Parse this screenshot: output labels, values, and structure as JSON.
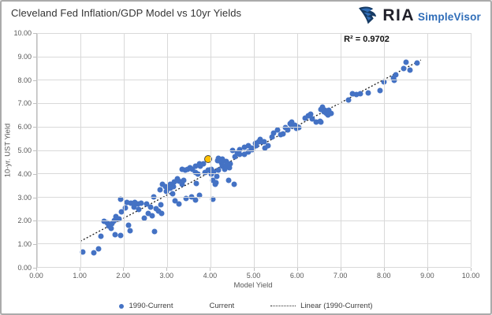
{
  "header": {
    "title": "Cleveland Fed Inflation/GDP Model vs 10yr Yields",
    "logo": {
      "ria_text": "RIA",
      "simplevisor_text": "SimpleVisor",
      "ria_color": "#20202a",
      "simplevisor_color": "#2f6db8",
      "icon_dark_blue": "#163a63",
      "icon_mid_blue": "#2f6db8"
    }
  },
  "chart_data": {
    "type": "scatter",
    "title": "Cleveland Fed Inflation/GDP Model vs 10yr Yields",
    "xlabel": "Model Yield",
    "ylabel": "10-yr. UST Yield",
    "xlim": [
      0,
      10
    ],
    "ylim": [
      0,
      10
    ],
    "grid": true,
    "annotation": "R² = 0.9702",
    "x_ticks": [
      "0.00",
      "1.00",
      "2.00",
      "3.00",
      "4.00",
      "5.00",
      "6.00",
      "7.00",
      "8.00",
      "9.00",
      "10.00"
    ],
    "y_ticks": [
      "0.00",
      "1.00",
      "2.00",
      "3.00",
      "4.00",
      "5.00",
      "6.00",
      "7.00",
      "8.00",
      "9.00",
      "10.00"
    ],
    "legend_position": "bottom",
    "series": [
      {
        "name": "1990-Current",
        "color": "#4472C4",
        "marker": "circle",
        "points": [
          [
            1.05,
            0.65
          ],
          [
            1.31,
            0.6
          ],
          [
            1.42,
            0.78
          ],
          [
            1.48,
            1.3
          ],
          [
            1.55,
            1.95
          ],
          [
            1.62,
            1.9
          ],
          [
            1.65,
            1.75
          ],
          [
            1.7,
            1.65
          ],
          [
            1.73,
            1.85
          ],
          [
            1.78,
            2.0
          ],
          [
            1.8,
            1.38
          ],
          [
            1.92,
            1.35
          ],
          [
            1.82,
            2.15
          ],
          [
            1.89,
            2.05
          ],
          [
            1.95,
            2.35
          ],
          [
            2.03,
            2.52
          ],
          [
            1.92,
            2.9
          ],
          [
            2.07,
            2.75
          ],
          [
            2.16,
            2.72
          ],
          [
            2.25,
            2.75
          ],
          [
            2.32,
            2.68
          ],
          [
            2.4,
            2.72
          ],
          [
            2.52,
            2.68
          ],
          [
            2.11,
            1.78
          ],
          [
            2.14,
            1.55
          ],
          [
            2.23,
            2.55
          ],
          [
            2.35,
            2.45
          ],
          [
            2.47,
            2.1
          ],
          [
            2.56,
            2.28
          ],
          [
            2.62,
            2.55
          ],
          [
            2.65,
            2.18
          ],
          [
            2.74,
            2.48
          ],
          [
            2.7,
            1.5
          ],
          [
            2.8,
            2.38
          ],
          [
            2.87,
            2.28
          ],
          [
            2.85,
            2.65
          ],
          [
            2.69,
            2.99
          ],
          [
            2.83,
            3.3
          ],
          [
            2.89,
            3.52
          ],
          [
            2.96,
            3.45
          ],
          [
            3.01,
            3.38
          ],
          [
            3.07,
            3.52
          ],
          [
            3.14,
            3.45
          ],
          [
            2.98,
            3.22
          ],
          [
            3.12,
            3.12
          ],
          [
            3.07,
            3.36
          ],
          [
            3.16,
            3.62
          ],
          [
            3.23,
            3.76
          ],
          [
            3.28,
            3.68
          ],
          [
            3.34,
            3.55
          ],
          [
            3.38,
            3.72
          ],
          [
            3.18,
            2.82
          ],
          [
            3.27,
            2.68
          ],
          [
            3.43,
            2.92
          ],
          [
            3.56,
            2.99
          ],
          [
            3.65,
            2.85
          ],
          [
            3.74,
            3.08
          ],
          [
            3.34,
            4.16
          ],
          [
            3.41,
            4.13
          ],
          [
            3.47,
            4.19
          ],
          [
            3.52,
            4.23
          ],
          [
            3.59,
            4.16
          ],
          [
            3.65,
            4.03
          ],
          [
            3.7,
            3.96
          ],
          [
            3.68,
            3.56
          ],
          [
            3.77,
            4.3
          ],
          [
            3.83,
            4.4
          ],
          [
            3.65,
            4.3
          ],
          [
            3.74,
            4.4
          ],
          [
            3.88,
            4.03
          ],
          [
            3.95,
            4.13
          ],
          [
            4.01,
            3.96
          ],
          [
            4.05,
            2.9
          ],
          [
            4.01,
            4.19
          ],
          [
            4.07,
            4.06
          ],
          [
            4.1,
            3.52
          ],
          [
            4.14,
            3.86
          ],
          [
            4.05,
            3.72
          ],
          [
            4.12,
            3.59
          ],
          [
            4.16,
            4.56
          ],
          [
            4.19,
            4.13
          ],
          [
            4.19,
            4.63
          ],
          [
            4.25,
            4.43
          ],
          [
            4.28,
            4.3
          ],
          [
            4.28,
            4.6
          ],
          [
            4.32,
            4.16
          ],
          [
            4.37,
            4.36
          ],
          [
            4.43,
            4.23
          ],
          [
            4.37,
            4.5
          ],
          [
            4.41,
            3.69
          ],
          [
            4.46,
            4.4
          ],
          [
            4.54,
            3.52
          ],
          [
            4.5,
            4.97
          ],
          [
            4.56,
            4.7
          ],
          [
            4.61,
            4.87
          ],
          [
            4.68,
            4.8
          ],
          [
            4.68,
            5.03
          ],
          [
            4.79,
            4.8
          ],
          [
            4.79,
            5.13
          ],
          [
            4.88,
            4.93
          ],
          [
            4.88,
            5.2
          ],
          [
            4.95,
            5.1
          ],
          [
            4.97,
            5.03
          ],
          [
            5.04,
            5.3
          ],
          [
            5.06,
            5.2
          ],
          [
            5.1,
            5.37
          ],
          [
            5.15,
            5.47
          ],
          [
            5.19,
            5.37
          ],
          [
            5.23,
            5.34
          ],
          [
            5.25,
            5.07
          ],
          [
            5.32,
            5.2
          ],
          [
            5.41,
            5.57
          ],
          [
            5.46,
            5.74
          ],
          [
            5.55,
            5.87
          ],
          [
            5.61,
            5.64
          ],
          [
            5.68,
            5.7
          ],
          [
            5.73,
            5.97
          ],
          [
            5.79,
            5.87
          ],
          [
            5.88,
            6.04
          ],
          [
            5.95,
            6.07
          ],
          [
            5.98,
            5.91
          ],
          [
            6.04,
            5.97
          ],
          [
            5.83,
            6.14
          ],
          [
            5.88,
            6.21
          ],
          [
            6.19,
            6.38
          ],
          [
            6.25,
            6.48
          ],
          [
            6.31,
            6.54
          ],
          [
            6.34,
            6.34
          ],
          [
            6.43,
            6.21
          ],
          [
            6.52,
            6.24
          ],
          [
            6.55,
            6.74
          ],
          [
            6.59,
            6.84
          ],
          [
            6.61,
            6.64
          ],
          [
            6.64,
            6.71
          ],
          [
            6.68,
            6.58
          ],
          [
            6.7,
            6.51
          ],
          [
            6.73,
            6.71
          ],
          [
            6.79,
            6.58
          ],
          [
            6.55,
            6.21
          ],
          [
            7.19,
            7.15
          ],
          [
            7.28,
            7.42
          ],
          [
            7.37,
            7.38
          ],
          [
            7.46,
            7.42
          ],
          [
            7.64,
            7.45
          ],
          [
            7.91,
            7.55
          ],
          [
            8.0,
            7.92
          ],
          [
            8.22,
            8.09
          ],
          [
            8.24,
            7.99
          ],
          [
            8.28,
            8.22
          ],
          [
            8.46,
            8.49
          ],
          [
            8.51,
            8.76
          ],
          [
            8.6,
            8.42
          ],
          [
            8.77,
            8.72
          ]
        ]
      },
      {
        "name": "Current",
        "color": "#FFC000",
        "border_color": "#454545",
        "marker": "circle",
        "points": [
          [
            3.95,
            4.6
          ]
        ]
      }
    ],
    "trendline": {
      "name": "Linear (1990-Current)",
      "color": "#1d1d1d",
      "style": "dotted",
      "x1": 1.0,
      "y1": 1.1,
      "x2": 8.85,
      "y2": 8.85
    }
  },
  "legend": {
    "items": [
      {
        "label": "1990-Current"
      },
      {
        "label": "Current"
      },
      {
        "label": "Linear (1990-Current)"
      }
    ]
  }
}
